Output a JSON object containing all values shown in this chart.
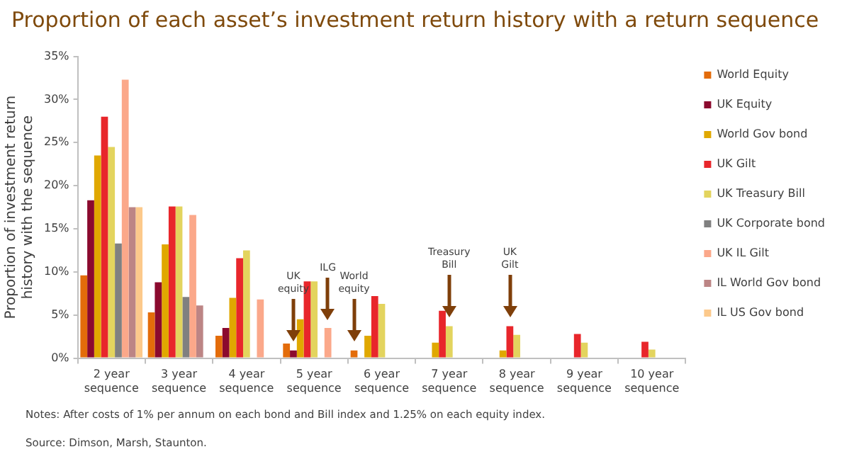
{
  "chart_data": {
    "type": "bar",
    "title": "Proportion of each asset’s investment return history with a return sequence",
    "ylabel": "Proportion of investment return history with the sequence",
    "categories": [
      "2 year sequence",
      "3 year sequence",
      "4 year sequence",
      "5 year sequence",
      "6 year sequence",
      "7 year sequence",
      "8 year sequence",
      "9 year sequence",
      "10 year sequence"
    ],
    "series": [
      {
        "name": "World Equity",
        "color": "#e36c0a",
        "values": [
          9.6,
          5.3,
          2.6,
          1.7,
          0.9,
          null,
          null,
          null,
          null
        ]
      },
      {
        "name": "UK Equity",
        "color": "#8b0a2e",
        "values": [
          18.3,
          8.8,
          3.5,
          0.9,
          null,
          null,
          null,
          null,
          null
        ]
      },
      {
        "name": "World Gov bond",
        "color": "#e0a800",
        "values": [
          23.5,
          13.2,
          7.0,
          4.5,
          2.6,
          1.8,
          0.9,
          null,
          null
        ]
      },
      {
        "name": "UK Gilt",
        "color": "#e8262b",
        "values": [
          28.0,
          17.6,
          11.6,
          8.9,
          7.2,
          5.5,
          3.7,
          2.8,
          1.9
        ]
      },
      {
        "name": "UK Treasury Bill",
        "color": "#e3d45e",
        "values": [
          24.5,
          17.6,
          12.5,
          8.9,
          6.3,
          3.7,
          2.7,
          1.8,
          1.0
        ]
      },
      {
        "name": "UK Corporate bond",
        "color": "#808080",
        "values": [
          13.3,
          7.1,
          null,
          null,
          null,
          null,
          null,
          null,
          null
        ]
      },
      {
        "name": "UK IL Gilt",
        "color": "#fba88a",
        "values": [
          32.3,
          16.6,
          6.8,
          3.5,
          null,
          null,
          null,
          null,
          null
        ]
      },
      {
        "name": "IL World Gov bond",
        "color": "#bc8585",
        "values": [
          17.5,
          6.1,
          null,
          null,
          null,
          null,
          null,
          null,
          null
        ]
      },
      {
        "name": "IL US Gov bond",
        "color": "#fcc98b",
        "values": [
          17.5,
          null,
          null,
          null,
          null,
          null,
          null,
          null,
          null
        ]
      }
    ],
    "ylim": [
      0,
      35
    ],
    "yticks": [
      {
        "value": 0,
        "label": "0%"
      },
      {
        "value": 5,
        "label": "5%"
      },
      {
        "value": 10,
        "label": "10%"
      },
      {
        "value": 15,
        "label": "15%"
      },
      {
        "value": 20,
        "label": "20%"
      },
      {
        "value": 25,
        "label": "25%"
      },
      {
        "value": 30,
        "label": "30%"
      },
      {
        "value": 35,
        "label": "35%"
      }
    ],
    "grid": false,
    "legend": "right",
    "annotations": [
      "UK equity",
      "ILG",
      "World equity",
      "Treasury Bill",
      "UK Gilt",
      "Notes: After costs of 1% per annum on each bond and Bill index and 1.25% on each equity index.",
      "Source: Dimson, Marsh, Staunton."
    ]
  }
}
